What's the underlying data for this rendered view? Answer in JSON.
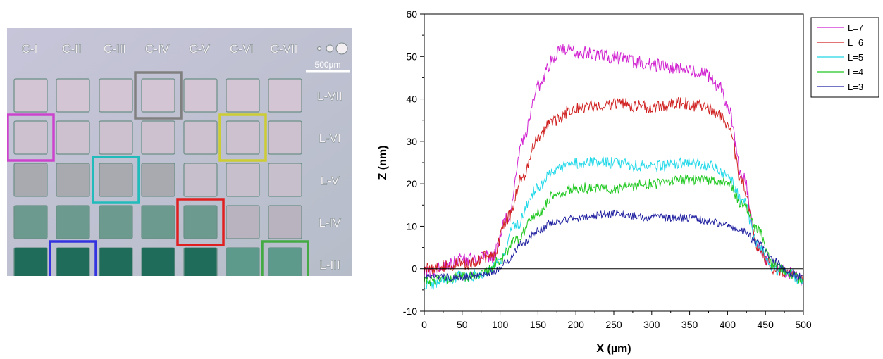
{
  "micrograph": {
    "column_labels": [
      "C-I",
      "C-II",
      "C-III",
      "C-IV",
      "C-V",
      "C-VI",
      "C-VII"
    ],
    "row_labels": [
      "L-VII",
      "L-VI",
      "L-V",
      "L-IV",
      "L-III"
    ],
    "scale_bar_label": "500µm",
    "highlight_boxes": [
      {
        "row": 0,
        "col": 3,
        "color": "#808080"
      },
      {
        "row": 1,
        "col": 0,
        "color": "#cc44cc"
      },
      {
        "row": 1,
        "col": 5,
        "color": "#cccc33"
      },
      {
        "row": 2,
        "col": 2,
        "color": "#22bbbb"
      },
      {
        "row": 3,
        "col": 4,
        "color": "#e02020"
      },
      {
        "row": 4,
        "col": 1,
        "color": "#3333e0"
      },
      {
        "row": 4,
        "col": 6,
        "color": "#44aa44"
      }
    ]
  },
  "chart_data": {
    "type": "line",
    "title": "",
    "xlabel": "X (µm)",
    "ylabel": "Z (nm)",
    "xlim": [
      0,
      500
    ],
    "ylim": [
      -10,
      60
    ],
    "xticks": [
      0,
      50,
      100,
      150,
      200,
      250,
      300,
      350,
      400,
      450,
      500
    ],
    "yticks": [
      -10,
      0,
      10,
      20,
      30,
      40,
      50,
      60
    ],
    "grid": false,
    "legend_position": "top-right outside",
    "zero_line": true,
    "series": [
      {
        "name": "L=7",
        "color": "#d020d0",
        "x": [
          0,
          50,
          90,
          110,
          130,
          150,
          170,
          180,
          200,
          250,
          300,
          340,
          370,
          390,
          400,
          420,
          440,
          460,
          480,
          500
        ],
        "y": [
          -1,
          2,
          3,
          12,
          30,
          43,
          49,
          52,
          51,
          50,
          48,
          47,
          46,
          43,
          38,
          22,
          5,
          0,
          -1,
          -3
        ]
      },
      {
        "name": "L=6",
        "color": "#d02020",
        "x": [
          0,
          50,
          90,
          110,
          130,
          150,
          170,
          200,
          250,
          300,
          340,
          370,
          390,
          400,
          420,
          440,
          460,
          480,
          500
        ],
        "y": [
          0,
          1,
          3,
          12,
          22,
          31,
          35,
          38,
          39,
          38,
          39,
          38,
          36,
          34,
          20,
          5,
          0,
          -1,
          -3
        ]
      },
      {
        "name": "L=5",
        "color": "#20d8e8",
        "x": [
          0,
          50,
          80,
          100,
          120,
          150,
          170,
          200,
          250,
          300,
          350,
          380,
          400,
          420,
          440,
          460,
          480,
          500
        ],
        "y": [
          -4,
          -2,
          -1,
          2,
          10,
          19,
          23,
          25,
          25,
          24,
          25,
          24,
          22,
          16,
          6,
          0,
          -1,
          -3
        ]
      },
      {
        "name": "L=4",
        "color": "#20c820",
        "x": [
          0,
          50,
          80,
          100,
          120,
          150,
          170,
          200,
          250,
          300,
          350,
          380,
          400,
          420,
          440,
          460,
          480,
          500
        ],
        "y": [
          -3,
          -2,
          -1,
          2,
          7,
          13,
          17,
          19,
          19,
          20,
          21,
          21,
          20,
          15,
          9,
          1,
          -1,
          -3
        ]
      },
      {
        "name": "L=3",
        "color": "#2020a0",
        "x": [
          0,
          50,
          90,
          110,
          130,
          150,
          170,
          200,
          250,
          300,
          350,
          380,
          400,
          420,
          440,
          460,
          480,
          500
        ],
        "y": [
          -2,
          -2,
          -1,
          2,
          6,
          9,
          11,
          12,
          13,
          12,
          12,
          11,
          10,
          9,
          6,
          2,
          -1,
          -2
        ]
      }
    ]
  }
}
